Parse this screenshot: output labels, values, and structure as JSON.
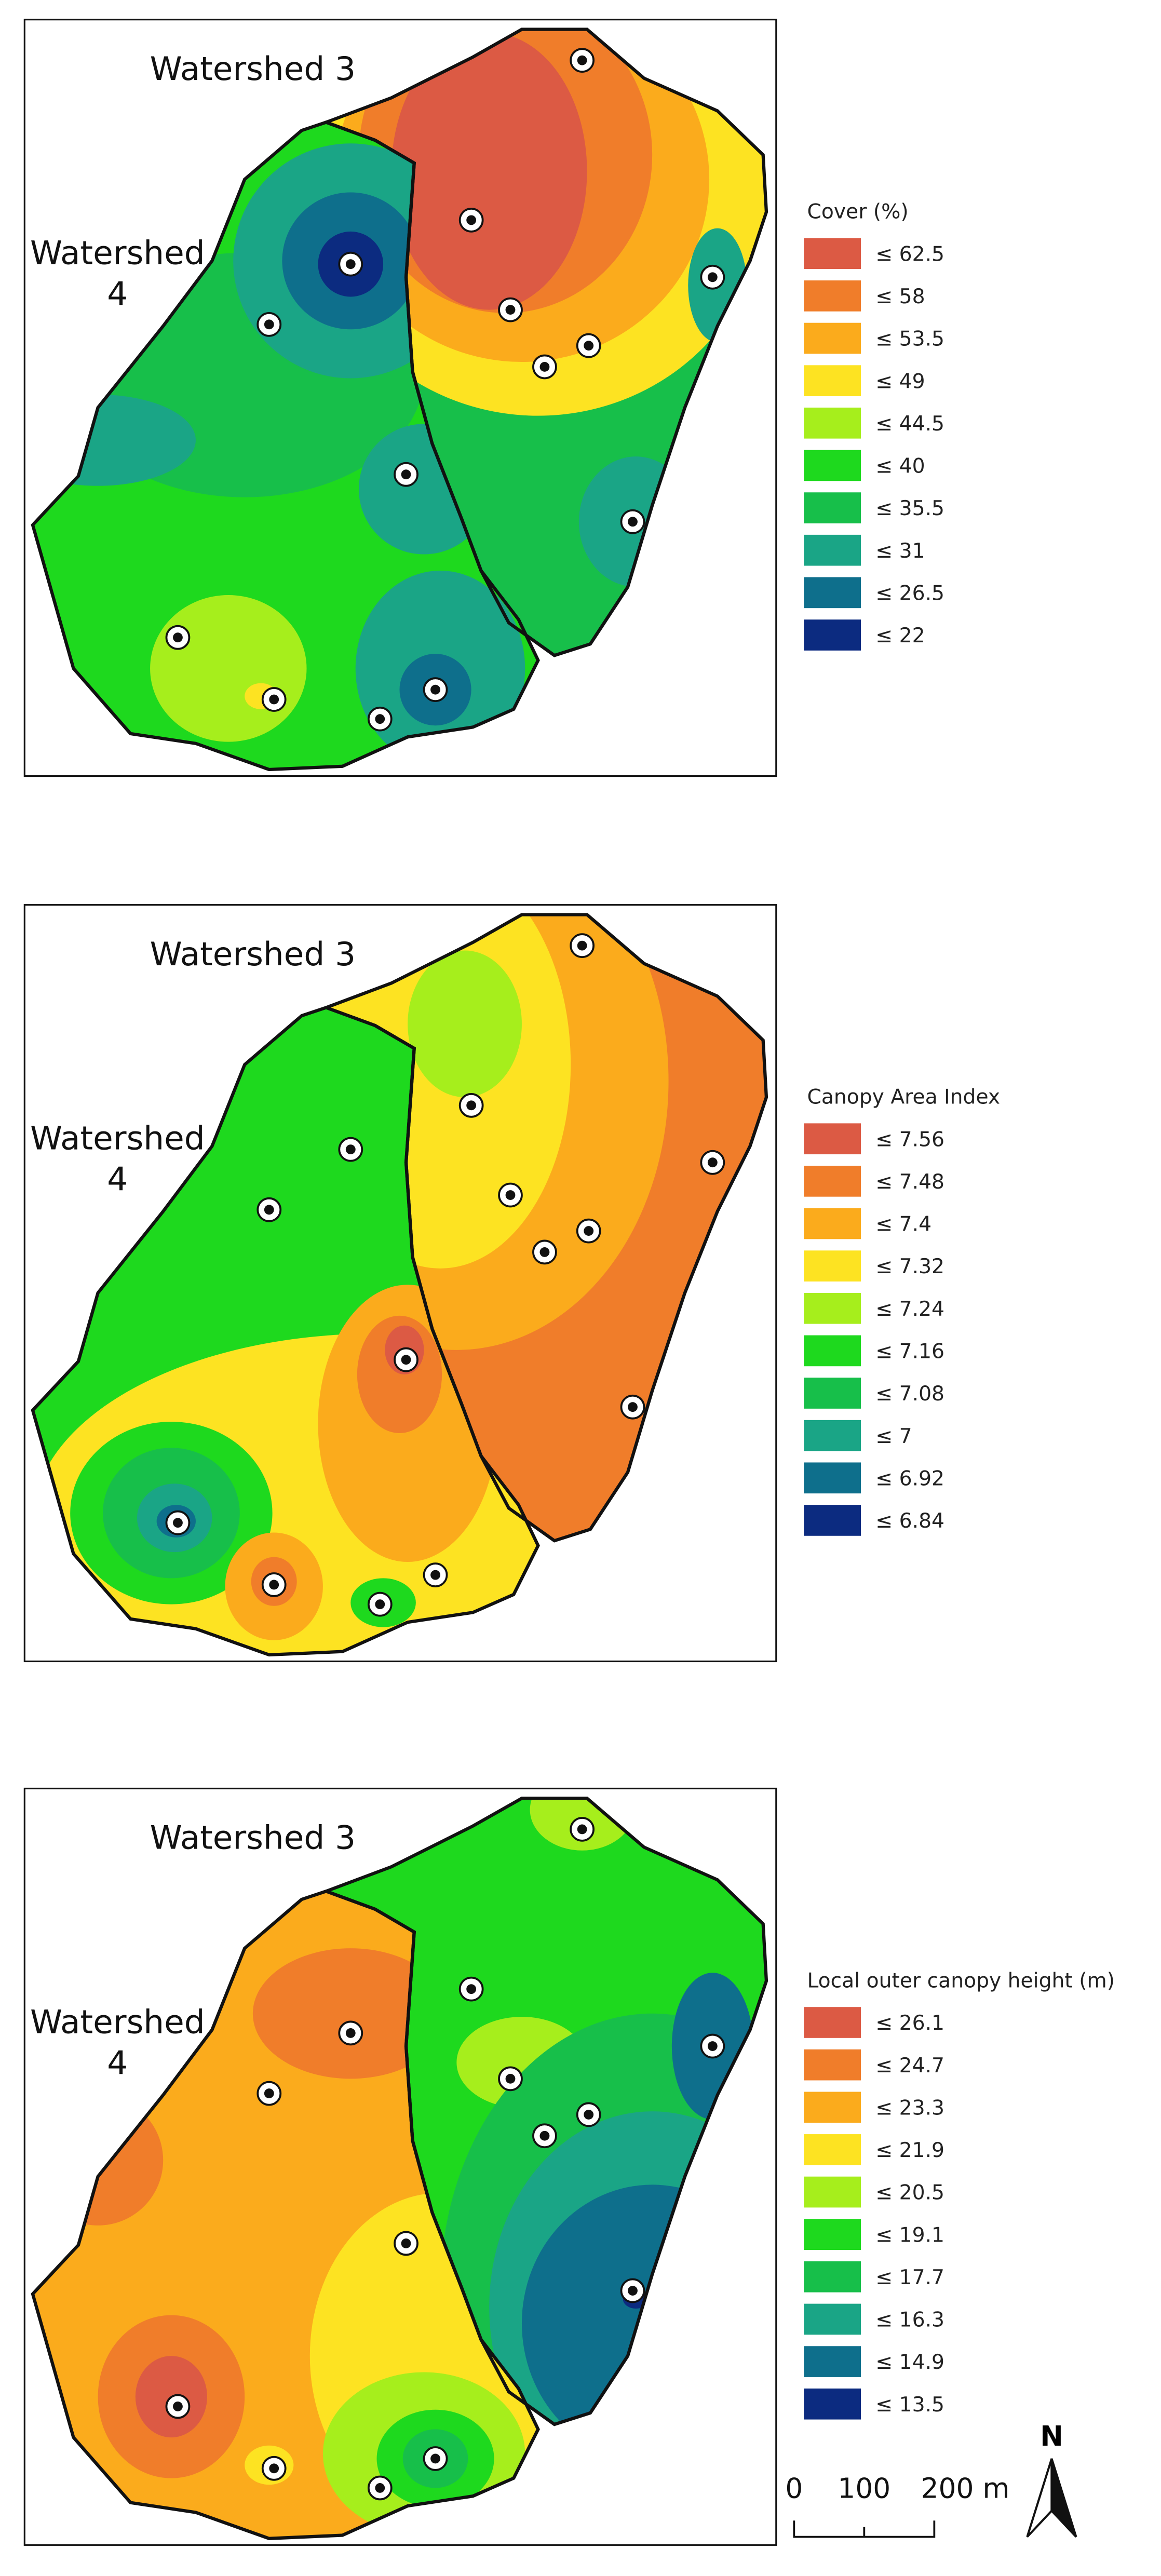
{
  "panels": [
    {
      "watershed_3": "Watershed 3",
      "watershed_4": [
        "Watershed",
        "4"
      ],
      "legend": {
        "title": "Cover (%)",
        "items": [
          {
            "label": "≤ 62.5",
            "color": "#dc5a44"
          },
          {
            "label": "≤ 58",
            "color": "#f07d2a"
          },
          {
            "label": "≤ 53.5",
            "color": "#fbab1c"
          },
          {
            "label": "≤ 49",
            "color": "#fde322"
          },
          {
            "label": "≤ 44.5",
            "color": "#a6ee1c"
          },
          {
            "label": "≤ 40",
            "color": "#1ed91e"
          },
          {
            "label": "≤ 35.5",
            "color": "#17bf4a"
          },
          {
            "label": "≤ 31",
            "color": "#1aa586"
          },
          {
            "label": "≤ 26.5",
            "color": "#0e6f8c"
          },
          {
            "label": "≤ 22",
            "color": "#0c2b80"
          }
        ]
      }
    },
    {
      "watershed_3": "Watershed 3",
      "watershed_4": [
        "Watershed",
        "4"
      ],
      "legend": {
        "title": "Canopy Area Index",
        "items": [
          {
            "label": "≤ 7.56",
            "color": "#dc5a44"
          },
          {
            "label": "≤ 7.48",
            "color": "#f07d2a"
          },
          {
            "label": "≤ 7.4",
            "color": "#fbab1c"
          },
          {
            "label": "≤ 7.32",
            "color": "#fde322"
          },
          {
            "label": "≤ 7.24",
            "color": "#a6ee1c"
          },
          {
            "label": "≤ 7.16",
            "color": "#1ed91e"
          },
          {
            "label": "≤ 7.08",
            "color": "#17bf4a"
          },
          {
            "label": "≤ 7",
            "color": "#1aa586"
          },
          {
            "label": "≤ 6.92",
            "color": "#0e6f8c"
          },
          {
            "label": "≤ 6.84",
            "color": "#0c2b80"
          }
        ]
      }
    },
    {
      "watershed_3": "Watershed 3",
      "watershed_4": [
        "Watershed",
        "4"
      ],
      "legend": {
        "title": "Local outer canopy height (m)",
        "items": [
          {
            "label": "≤ 26.1",
            "color": "#dc5a44"
          },
          {
            "label": "≤ 24.7",
            "color": "#f07d2a"
          },
          {
            "label": "≤ 23.3",
            "color": "#fbab1c"
          },
          {
            "label": "≤ 21.9",
            "color": "#fde322"
          },
          {
            "label": "≤ 20.5",
            "color": "#a6ee1c"
          },
          {
            "label": "≤ 19.1",
            "color": "#1ed91e"
          },
          {
            "label": "≤ 17.7",
            "color": "#17bf4a"
          },
          {
            "label": "≤ 16.3",
            "color": "#1aa586"
          },
          {
            "label": "≤ 14.9",
            "color": "#0e6f8c"
          },
          {
            "label": "≤ 13.5",
            "color": "#0c2b80"
          }
        ]
      }
    }
  ],
  "scale_bar": [
    "0",
    "100",
    "200 m"
  ],
  "north": "N"
}
